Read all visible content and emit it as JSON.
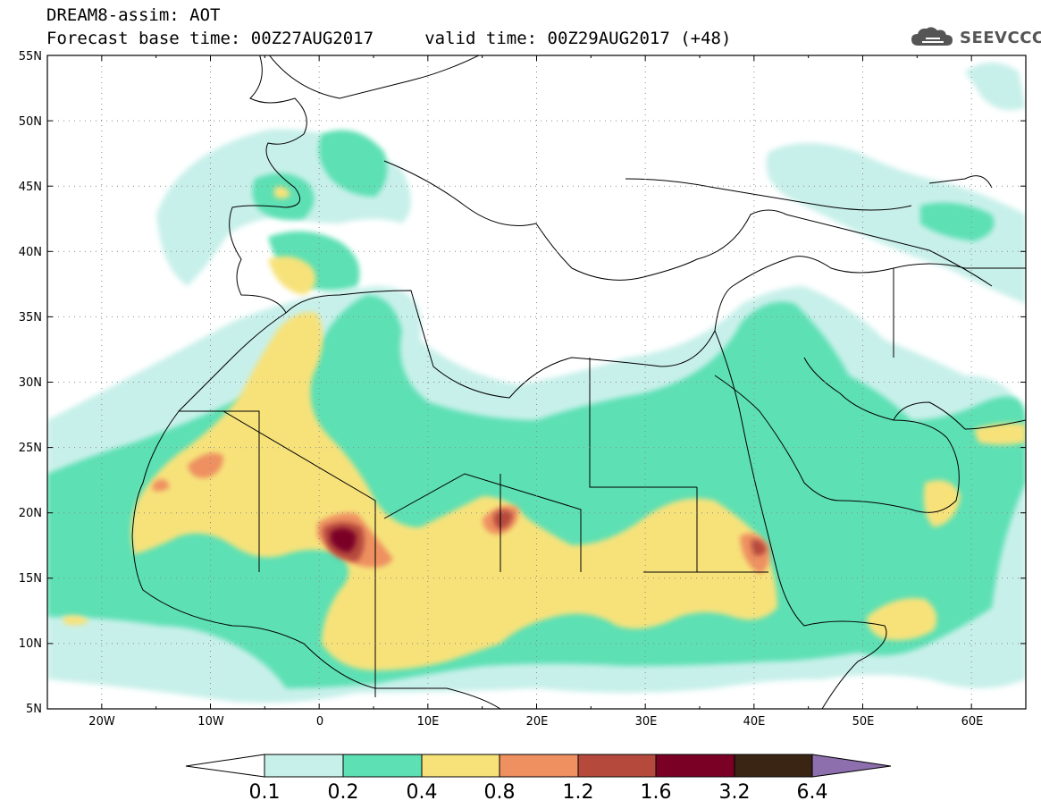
{
  "header": {
    "title": "DREAM8-assim: AOT",
    "subtitle": "Forecast base time: 00Z27AUG2017     valid time: 00Z29AUG2017 (+48)"
  },
  "logo": {
    "text": "SEEVCCC",
    "icon": "cloud-icon"
  },
  "map": {
    "lon_range": [
      -25,
      65
    ],
    "lat_range": [
      5,
      55
    ],
    "lat_ticks": [
      {
        "label": "55N"
      },
      {
        "label": "50N"
      },
      {
        "label": "45N"
      },
      {
        "label": "40N"
      },
      {
        "label": "35N"
      },
      {
        "label": "30N"
      },
      {
        "label": "25N"
      },
      {
        "label": "20N"
      },
      {
        "label": "15N"
      },
      {
        "label": "10N"
      },
      {
        "label": "5N"
      }
    ],
    "lon_ticks": [
      {
        "label": "20W"
      },
      {
        "label": "10W"
      },
      {
        "label": "0"
      },
      {
        "label": "10E"
      },
      {
        "label": "20E"
      },
      {
        "label": "30E"
      },
      {
        "label": "40E"
      },
      {
        "label": "50E"
      },
      {
        "label": "60E"
      }
    ],
    "grid": true
  },
  "colorbar": {
    "colors": [
      "#ffffff",
      "#c8f0ea",
      "#5de0b4",
      "#f7e27a",
      "#ee9060",
      "#b54a3c",
      "#7a0025",
      "#3a2414",
      "#8e6fae"
    ],
    "labels": [
      "0.1",
      "0.2",
      "0.4",
      "0.8",
      "1.2",
      "1.6",
      "3.2",
      "6.4"
    ]
  }
}
